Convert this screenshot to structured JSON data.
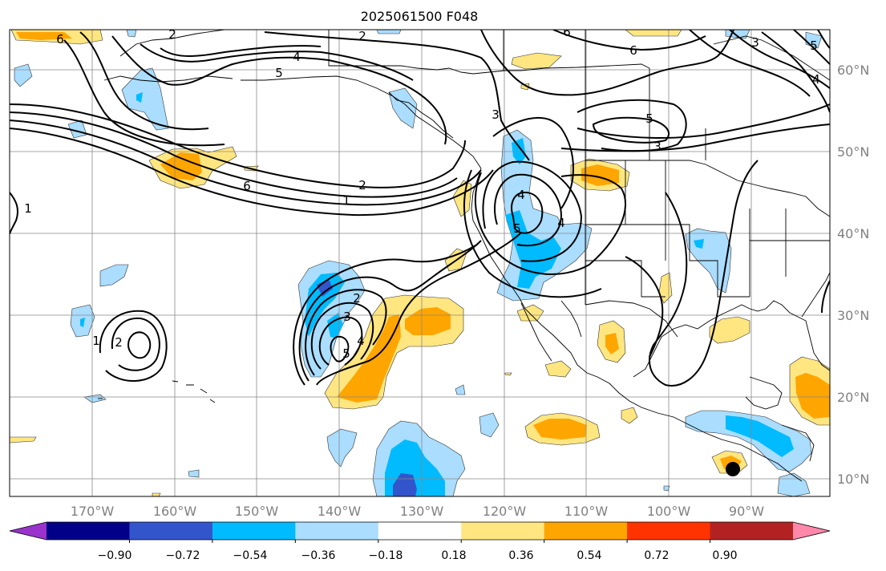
{
  "title": "2025061500 F048",
  "map": {
    "lat_labels": [
      "60°N",
      "50°N",
      "40°N",
      "30°N",
      "20°N",
      "10°N"
    ],
    "lon_labels": [
      "170°W",
      "160°W",
      "150°W",
      "140°W",
      "130°W",
      "120°W",
      "110°W",
      "100°W",
      "90°W"
    ]
  },
  "colorbar": {
    "colors": [
      "#9933cc",
      "#000088",
      "#3355cc",
      "#00bbff",
      "#aaddff",
      "#ffffff",
      "#ffe680",
      "#ffa500",
      "#ff3300",
      "#b22222",
      "#ff88aa"
    ],
    "tick_labels": [
      "−0.90",
      "−0.72",
      "−0.54",
      "−0.36",
      "−0.18",
      "0.18",
      "0.36",
      "0.54",
      "0.72",
      "0.90"
    ]
  },
  "contour_labels": [
    {
      "id": "c1",
      "text": "6"
    },
    {
      "id": "c2",
      "text": "2"
    },
    {
      "id": "c3",
      "text": "4"
    },
    {
      "id": "c4",
      "text": "5"
    },
    {
      "id": "c5",
      "text": "2"
    },
    {
      "id": "c6",
      "text": "6"
    },
    {
      "id": "c7",
      "text": "6"
    },
    {
      "id": "c8",
      "text": "3"
    },
    {
      "id": "c9",
      "text": "5"
    },
    {
      "id": "c10",
      "text": "4"
    },
    {
      "id": "c11",
      "text": "5"
    },
    {
      "id": "c12",
      "text": "3"
    },
    {
      "id": "c13",
      "text": "3"
    },
    {
      "id": "c14",
      "text": "6"
    },
    {
      "id": "c15",
      "text": "2"
    },
    {
      "id": "c16",
      "text": "1"
    },
    {
      "id": "c17",
      "text": "1"
    },
    {
      "id": "c18",
      "text": "4"
    },
    {
      "id": "c19",
      "text": "5"
    },
    {
      "id": "c20",
      "text": "4"
    },
    {
      "id": "c21",
      "text": "2"
    },
    {
      "id": "c22",
      "text": "3"
    },
    {
      "id": "c23",
      "text": "5"
    },
    {
      "id": "c24",
      "text": "4"
    },
    {
      "id": "c25",
      "text": "1"
    },
    {
      "id": "c26",
      "text": "2"
    }
  ]
}
